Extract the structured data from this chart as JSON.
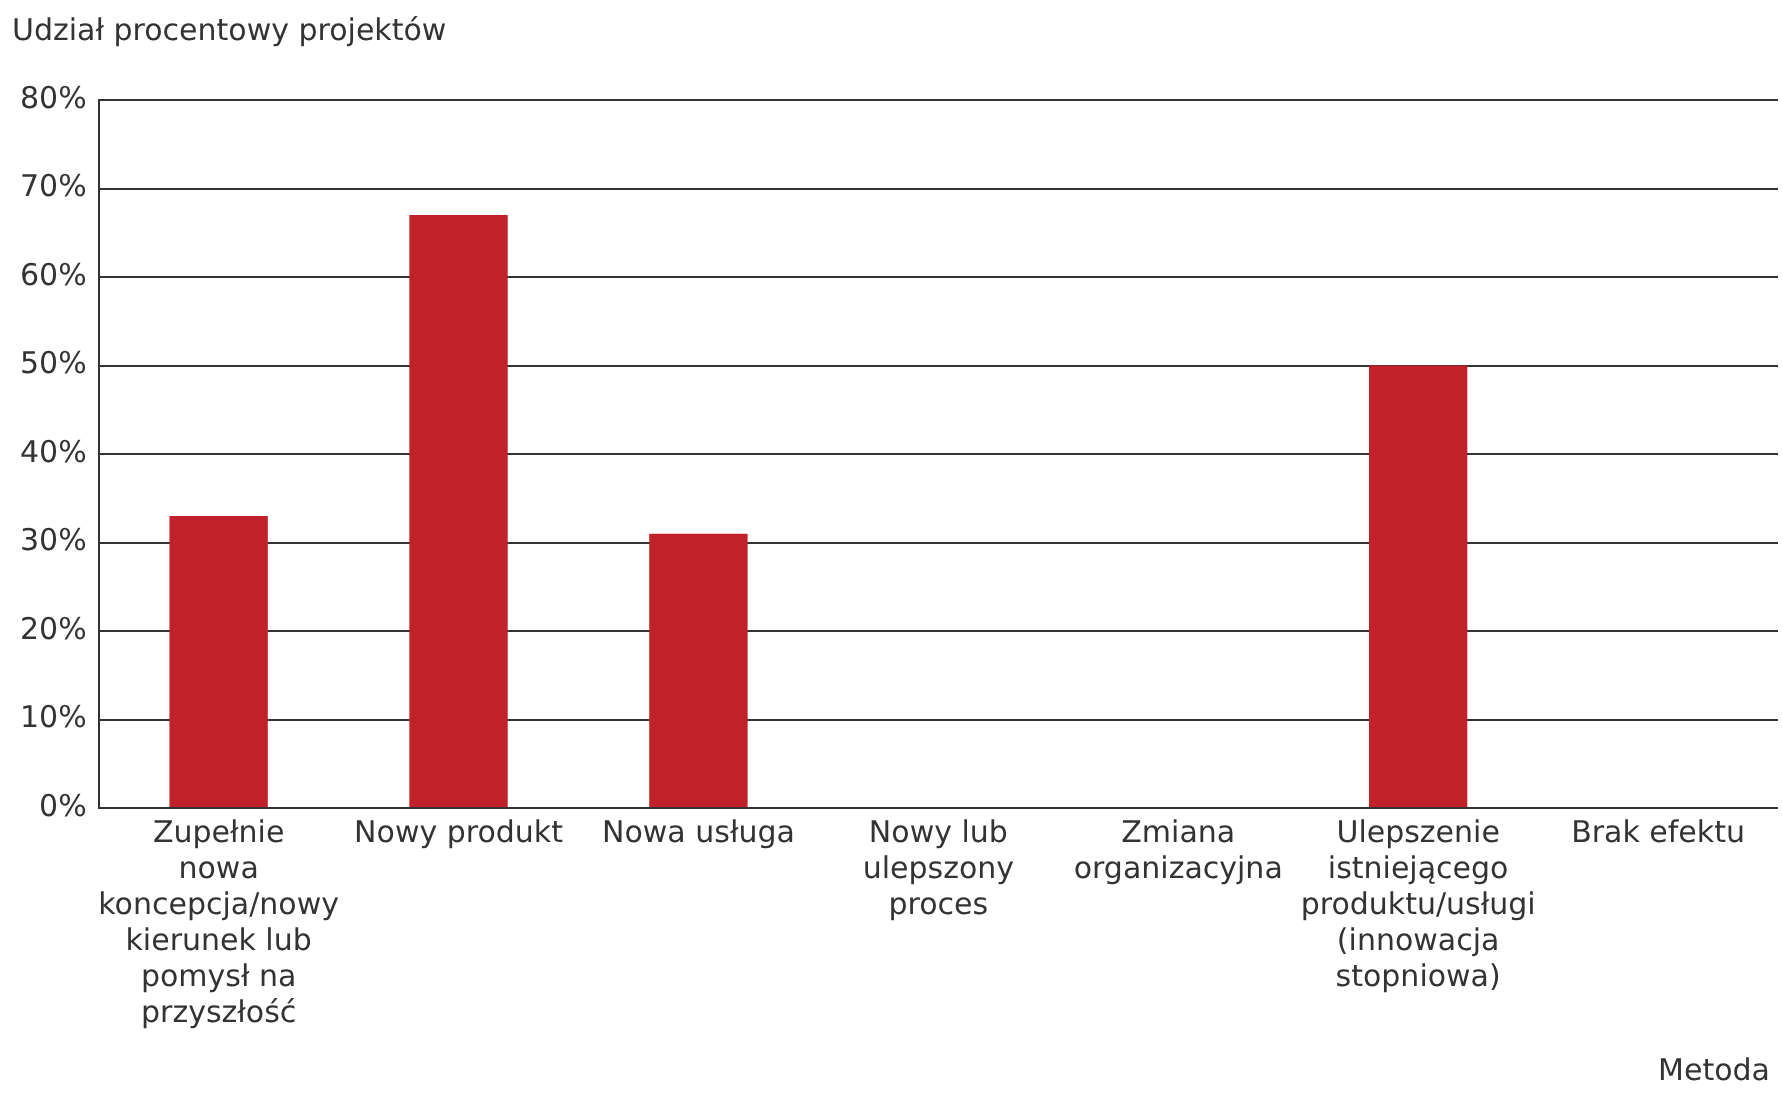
{
  "chart_data": {
    "type": "bar",
    "ylabel": "Udział procentowy projektów",
    "xlabel": "Metoda",
    "categories": [
      "Zupełnie nowa koncepcja/nowy kierunek lub pomysł na przyszłość",
      "Nowy produkt",
      "Nowa usługa",
      "Nowy lub ulepszony proces",
      "Zmiana organizacyjna",
      "Ulepszenie istniejącego produktu/usługi (innowacja stopniowa)",
      "Brak efektu"
    ],
    "values": [
      33,
      67,
      31,
      0,
      0,
      50,
      0
    ],
    "color": "#c1212a",
    "ylim": [
      0,
      80
    ],
    "yticks": [
      {
        "value": 0,
        "label": "0%"
      },
      {
        "value": 10,
        "label": "10%"
      },
      {
        "value": 20,
        "label": "20%"
      },
      {
        "value": 30,
        "label": "30%"
      },
      {
        "value": 40,
        "label": "40%"
      },
      {
        "value": 50,
        "label": "50%"
      },
      {
        "value": 60,
        "label": "60%"
      },
      {
        "value": 70,
        "label": "70%"
      },
      {
        "value": 80,
        "label": "80%"
      }
    ],
    "grid": "y",
    "legend": false
  }
}
